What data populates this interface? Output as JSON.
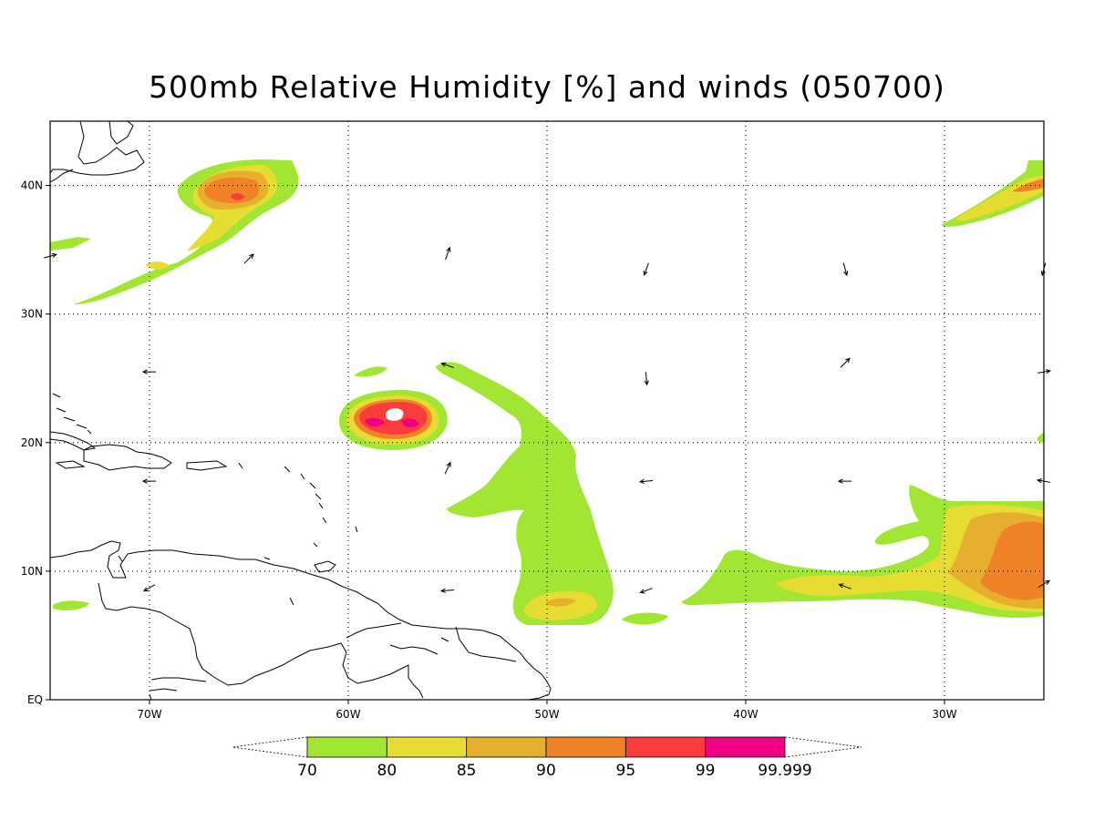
{
  "title": "500mb Relative Humidity [%] and winds (050700)",
  "map": {
    "lon_range": [
      -75,
      -25
    ],
    "lat_range": [
      0,
      45
    ],
    "x_ticks": [
      {
        "lon": -70,
        "label": "70W"
      },
      {
        "lon": -60,
        "label": "60W"
      },
      {
        "lon": -50,
        "label": "50W"
      },
      {
        "lon": -40,
        "label": "40W"
      },
      {
        "lon": -30,
        "label": "30W"
      }
    ],
    "y_ticks": [
      {
        "lat": 0,
        "label": "EQ"
      },
      {
        "lat": 10,
        "label": "10N"
      },
      {
        "lat": 20,
        "label": "20N"
      },
      {
        "lat": 30,
        "label": "30N"
      },
      {
        "lat": 40,
        "label": "40N"
      }
    ],
    "grid": "dotted"
  },
  "colorbar": {
    "bins": [
      {
        "from": "70",
        "color": "#a0e632"
      },
      {
        "from": "80",
        "color": "#e6dc32"
      },
      {
        "from": "85",
        "color": "#e6af2d"
      },
      {
        "from": "90",
        "color": "#f08228"
      },
      {
        "from": "95",
        "color": "#fa3c3c"
      },
      {
        "from": "99",
        "color": "#f00082"
      }
    ],
    "last_label": "99.999"
  },
  "winds": [
    {
      "lon": -75,
      "lat": 34.5,
      "dir": 75
    },
    {
      "lon": -70,
      "lat": 25.5,
      "dir": 270
    },
    {
      "lon": -70,
      "lat": 17,
      "dir": 270
    },
    {
      "lon": -70,
      "lat": 8.7,
      "dir": 240
    },
    {
      "lon": -65,
      "lat": 34.3,
      "dir": 45
    },
    {
      "lon": -55,
      "lat": 34.7,
      "dir": 20
    },
    {
      "lon": -55,
      "lat": 26,
      "dir": 290
    },
    {
      "lon": -55,
      "lat": 18,
      "dir": 25
    },
    {
      "lon": -55,
      "lat": 8.5,
      "dir": 265
    },
    {
      "lon": -45,
      "lat": 33.5,
      "dir": 200
    },
    {
      "lon": -45,
      "lat": 25,
      "dir": 175
    },
    {
      "lon": -45,
      "lat": 17,
      "dir": 265
    },
    {
      "lon": -45,
      "lat": 8.5,
      "dir": 250
    },
    {
      "lon": -35,
      "lat": 33.5,
      "dir": 165
    },
    {
      "lon": -35,
      "lat": 26.2,
      "dir": 45
    },
    {
      "lon": -35,
      "lat": 17,
      "dir": 270
    },
    {
      "lon": -35,
      "lat": 8.8,
      "dir": 290
    },
    {
      "lon": -25,
      "lat": 33.5,
      "dir": 195
    },
    {
      "lon": -25,
      "lat": 25.5,
      "dir": 80
    },
    {
      "lon": -25,
      "lat": 17,
      "dir": 280
    },
    {
      "lon": -25,
      "lat": 9,
      "dir": 60
    }
  ]
}
